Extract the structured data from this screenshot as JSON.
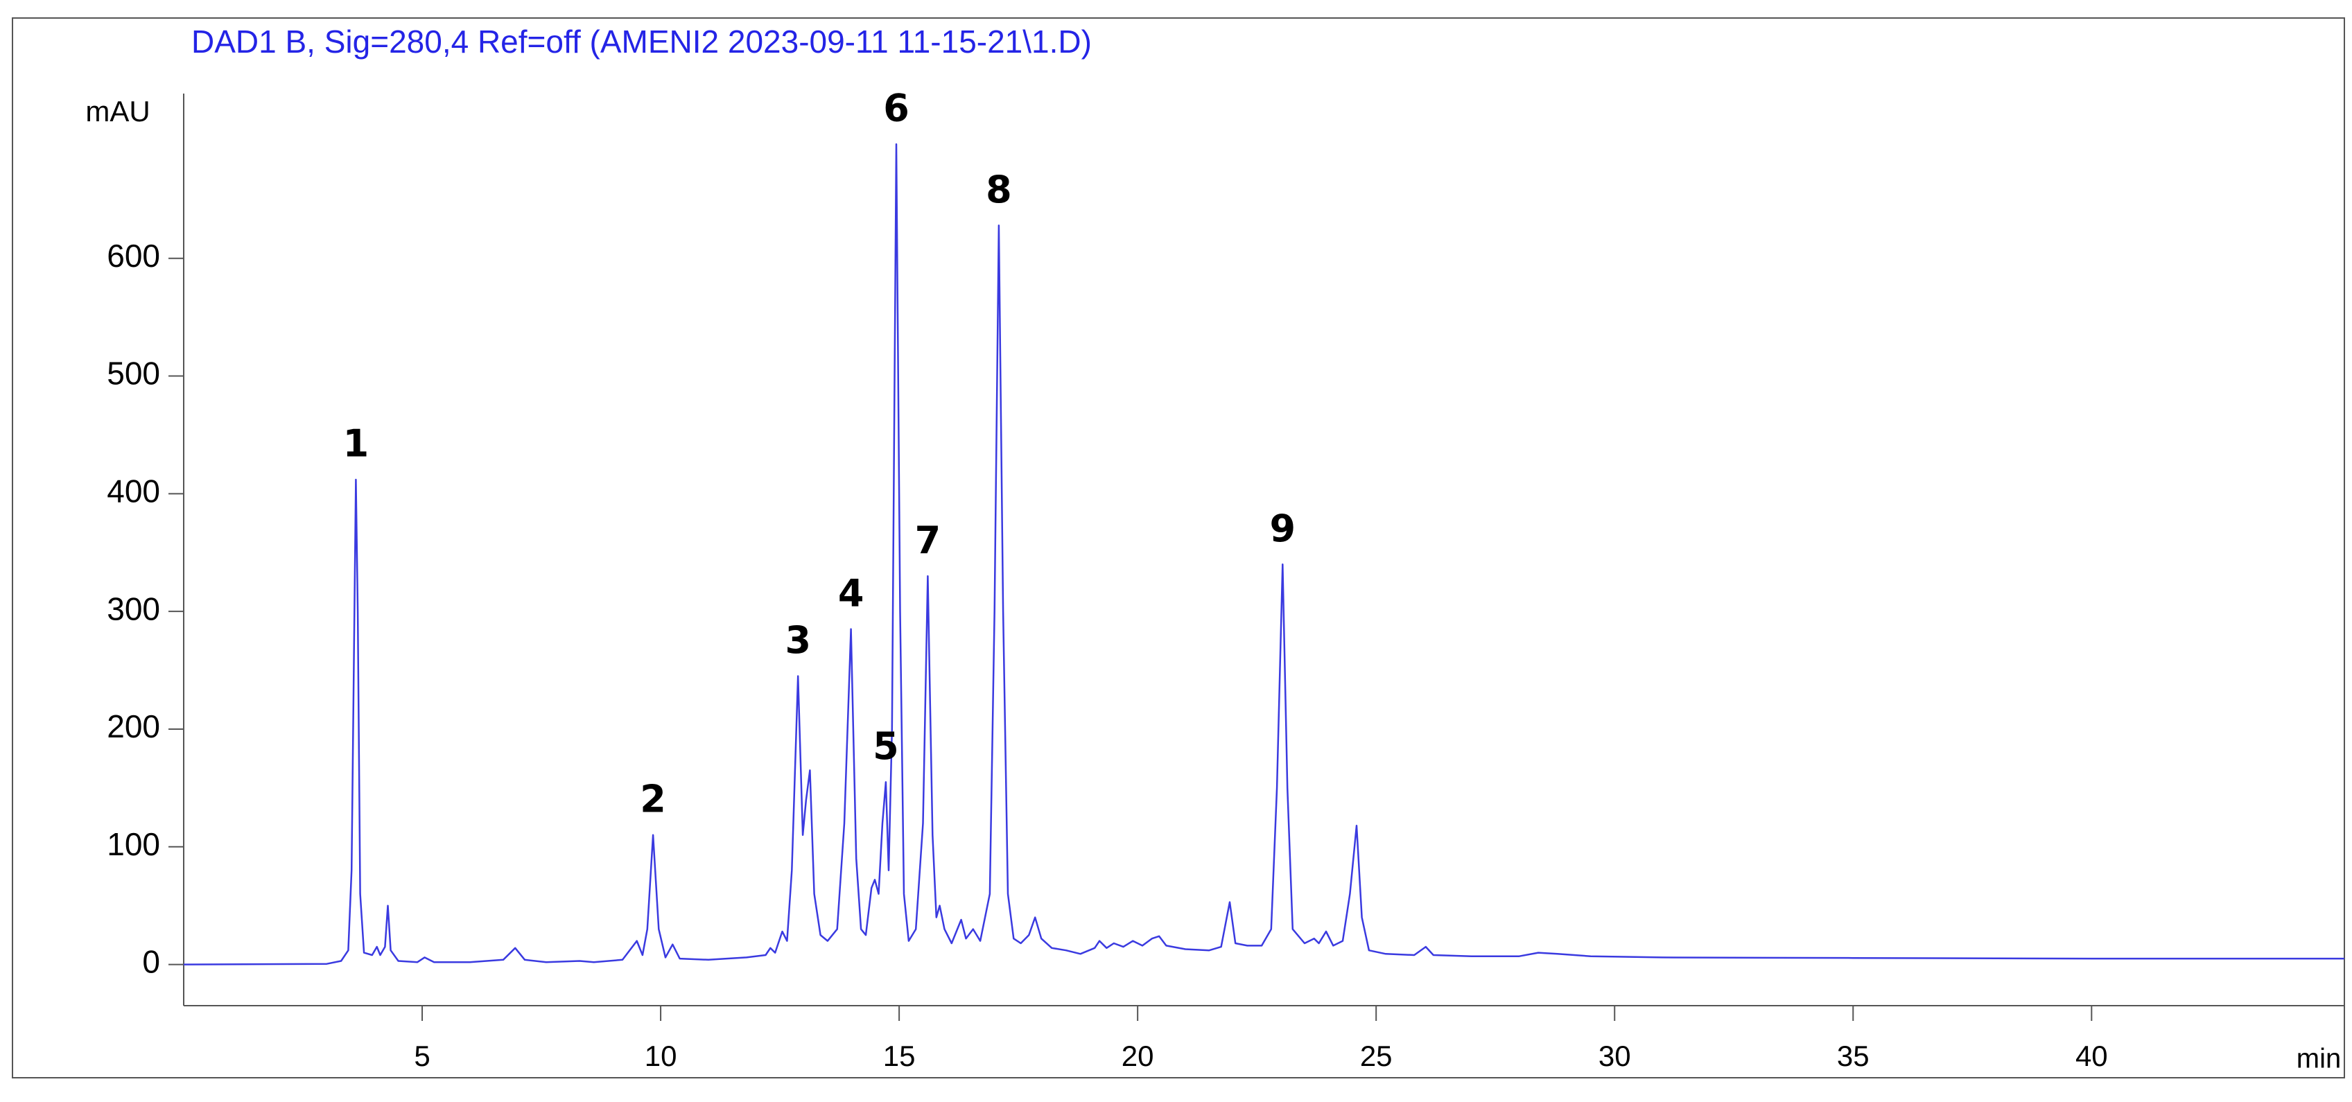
{
  "chart_data": {
    "type": "line",
    "title": "DAD1 B, Sig=280,4 Ref=off (AMENI2 2023-09-11 11-15-21\\1.D)",
    "y_label": "mAU",
    "x_label": "min",
    "xlim": [
      0,
      45.3
    ],
    "xticks": [
      5,
      10,
      15,
      20,
      25,
      30,
      35,
      40
    ],
    "ylim": [
      -35,
      740
    ],
    "yticks": [
      0,
      100,
      200,
      300,
      400,
      500,
      600
    ],
    "x": [
      0,
      3.0,
      3.3,
      3.45,
      3.52,
      3.58,
      3.61,
      3.65,
      3.7,
      3.78,
      3.95,
      4.05,
      4.12,
      4.22,
      4.28,
      4.34,
      4.5,
      4.9,
      5.05,
      5.25,
      6.0,
      6.7,
      6.95,
      7.15,
      7.6,
      8.3,
      8.6,
      9.2,
      9.5,
      9.62,
      9.72,
      9.84,
      9.96,
      10.1,
      10.25,
      10.4,
      11,
      11.8,
      12.2,
      12.3,
      12.4,
      12.55,
      12.65,
      12.75,
      12.88,
      12.98,
      13.05,
      13.13,
      13.22,
      13.35,
      13.5,
      13.7,
      13.85,
      13.99,
      14.1,
      14.2,
      14.3,
      14.42,
      14.49,
      14.57,
      14.65,
      14.72,
      14.78,
      14.85,
      14.94,
      15.02,
      15.1,
      15.2,
      15.35,
      15.5,
      15.6,
      15.7,
      15.78,
      15.85,
      15.95,
      16.1,
      16.3,
      16.4,
      16.55,
      16.7,
      16.9,
      17.0,
      17.09,
      17.18,
      17.28,
      17.4,
      17.55,
      17.72,
      17.85,
      17.98,
      18.2,
      18.5,
      18.8,
      19.1,
      19.2,
      19.35,
      19.5,
      19.7,
      19.9,
      20.1,
      20.3,
      20.45,
      20.6,
      21.0,
      21.5,
      21.75,
      21.93,
      22.05,
      22.3,
      22.6,
      22.8,
      22.92,
      23.04,
      23.14,
      23.25,
      23.5,
      23.7,
      23.8,
      23.95,
      24.1,
      24.3,
      24.45,
      24.59,
      24.7,
      24.85,
      25.2,
      25.8,
      26.04,
      26.2,
      27,
      28.0,
      28.4,
      28.8,
      29.5,
      31,
      35,
      40,
      45.3
    ],
    "series": [
      {
        "color": "#3a3ae0",
        "values": [
          0,
          0.5,
          3,
          12,
          80,
          300,
          412,
          300,
          60,
          10,
          8,
          15,
          8,
          15,
          50,
          12,
          3,
          2,
          6,
          2,
          2,
          4,
          14,
          4,
          2,
          3,
          2,
          4,
          20,
          8,
          30,
          110,
          30,
          6,
          17,
          5,
          4,
          6,
          8,
          14,
          10,
          28,
          20,
          80,
          245,
          110,
          140,
          165,
          60,
          25,
          20,
          30,
          120,
          285,
          90,
          30,
          25,
          65,
          72,
          60,
          120,
          155,
          80,
          200,
          697,
          300,
          60,
          20,
          30,
          120,
          330,
          110,
          40,
          50,
          30,
          18,
          38,
          22,
          30,
          20,
          60,
          300,
          628,
          300,
          60,
          22,
          18,
          25,
          40,
          22,
          14,
          12,
          9,
          14,
          20,
          14,
          18,
          15,
          20,
          16,
          22,
          24,
          16,
          13,
          12,
          15,
          53,
          18,
          16,
          16,
          30,
          150,
          340,
          150,
          30,
          18,
          22,
          18,
          28,
          16,
          20,
          60,
          118,
          40,
          12,
          9,
          8,
          15,
          8,
          7,
          7,
          10,
          9,
          7,
          6,
          5.5,
          5,
          5
        ]
      }
    ],
    "annotations": [
      {
        "text": "1",
        "x": 3.61
      },
      {
        "text": "2",
        "x": 9.84
      },
      {
        "text": "3",
        "x": 12.88
      },
      {
        "text": "4",
        "x": 13.99
      },
      {
        "text": "5",
        "x": 14.72
      },
      {
        "text": "6",
        "x": 14.94
      },
      {
        "text": "7",
        "x": 15.6
      },
      {
        "text": "8",
        "x": 17.09
      },
      {
        "text": "9",
        "x": 23.04
      }
    ]
  }
}
